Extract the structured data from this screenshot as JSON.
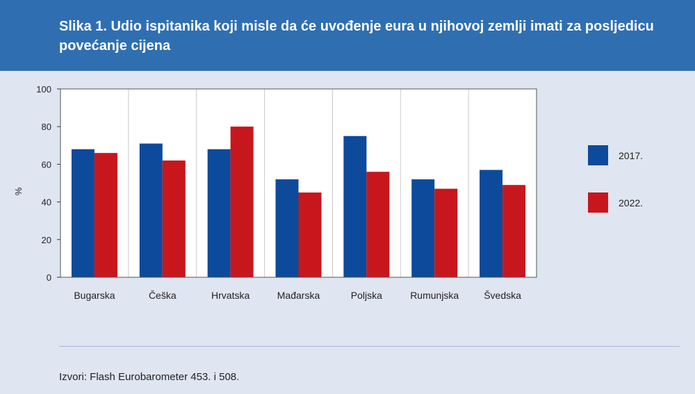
{
  "header": {
    "title": "Slika 1. Udio ispitanika koji misle da će uvođenje eura u njihovoj zemlji imati za posljedicu povećanje cijena"
  },
  "footer": {
    "source": "Izvori: Flash Eurobarometer 453. i 508."
  },
  "chart_data": {
    "type": "bar",
    "title": "",
    "xlabel": "",
    "ylabel": "%",
    "ylim": [
      0,
      100
    ],
    "yticks": [
      0,
      20,
      40,
      60,
      80,
      100
    ],
    "grid": true,
    "legend_position": "right",
    "categories": [
      "Bugarska",
      "Češka",
      "Hrvatska",
      "Mađarska",
      "Poljska",
      "Rumunjska",
      "Švedska"
    ],
    "series": [
      {
        "name": "2017.",
        "color": "#0d4a9b",
        "values": [
          68,
          71,
          68,
          52,
          75,
          52,
          57
        ]
      },
      {
        "name": "2022.",
        "color": "#c8161d",
        "values": [
          66,
          62,
          80,
          45,
          56,
          47,
          49
        ]
      }
    ]
  }
}
